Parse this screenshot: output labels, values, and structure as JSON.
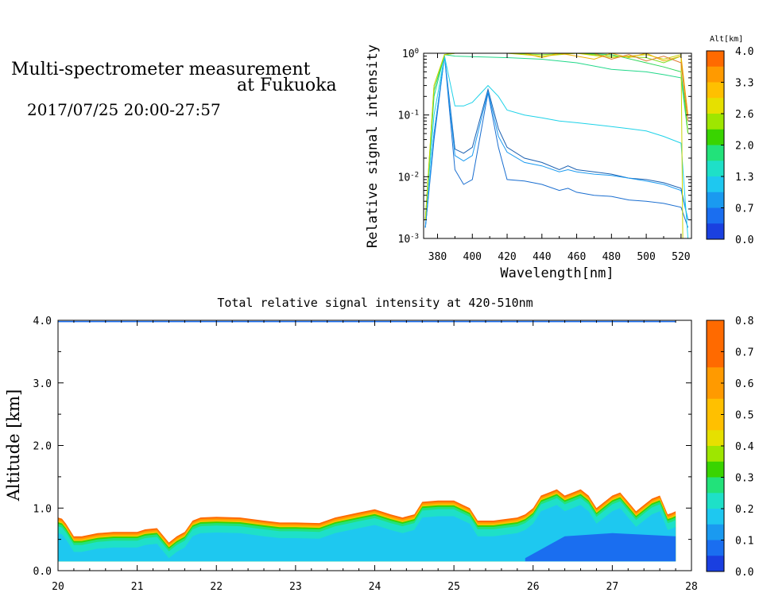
{
  "header": {
    "title_line1": "Multi-spectrometer measurement",
    "title_line2": "at Fukuoka",
    "subtitle": "2017/07/25 20:00-27:57"
  },
  "chart_data": [
    {
      "type": "line",
      "title": "",
      "xlabel": "Wavelength[nm]",
      "ylabel": "Relative signal intensity",
      "xscale": "linear",
      "yscale": "log",
      "xlim": [
        372,
        526
      ],
      "ylim": [
        0.001,
        1
      ],
      "xticks": [
        380,
        400,
        420,
        440,
        460,
        480,
        500,
        520
      ],
      "yticks": [
        {
          "value": 1,
          "label": "10^0"
        },
        {
          "value": 0.1,
          "label": "10^-1"
        },
        {
          "value": 0.01,
          "label": "10^-2"
        },
        {
          "value": 0.001,
          "label": "10^-3"
        }
      ],
      "colorbar": {
        "label": "Alt[km]",
        "ticks": [
          "4.0",
          "3.3",
          "2.6",
          "2.0",
          "1.3",
          "0.7",
          "0.0"
        ],
        "colors": [
          "#ff6a00",
          "#ff9a00",
          "#ffc000",
          "#e6e000",
          "#9ee600",
          "#39d400",
          "#22e27a",
          "#1ee0c8",
          "#1ec8f0",
          "#1a9af0",
          "#1a6ef0",
          "#1a40e0"
        ]
      },
      "series": [
        {
          "color": "#1a5fb0",
          "x": [
            373,
            378,
            384,
            390,
            395,
            400,
            409,
            415,
            420,
            430,
            440,
            450,
            455,
            460,
            470,
            480,
            490,
            500,
            510,
            520,
            524
          ],
          "y": [
            0.0015,
            0.05,
            0.9,
            0.028,
            0.024,
            0.03,
            0.26,
            0.06,
            0.03,
            0.02,
            0.017,
            0.013,
            0.015,
            0.013,
            0.012,
            0.011,
            0.0095,
            0.009,
            0.008,
            0.0065,
            0.002
          ]
        },
        {
          "color": "#1a6ed0",
          "x": [
            373,
            378,
            384,
            390,
            395,
            400,
            409,
            415,
            420,
            430,
            440,
            450,
            455,
            460,
            470,
            480,
            490,
            500,
            510,
            520,
            524
          ],
          "y": [
            0.0015,
            0.04,
            0.9,
            0.013,
            0.0075,
            0.009,
            0.23,
            0.03,
            0.009,
            0.0085,
            0.0075,
            0.006,
            0.0065,
            0.0056,
            0.005,
            0.0048,
            0.0042,
            0.004,
            0.0037,
            0.0032,
            0.0015
          ]
        },
        {
          "color": "#1a9af0",
          "x": [
            373,
            378,
            384,
            390,
            395,
            400,
            409,
            415,
            420,
            430,
            440,
            450,
            455,
            460,
            470,
            480,
            490,
            500,
            510,
            520,
            524
          ],
          "y": [
            0.0015,
            0.05,
            0.9,
            0.022,
            0.018,
            0.022,
            0.24,
            0.045,
            0.025,
            0.017,
            0.015,
            0.012,
            0.013,
            0.012,
            0.011,
            0.0105,
            0.0095,
            0.0085,
            0.0075,
            0.006,
            0.002
          ]
        },
        {
          "color": "#1ed2e8",
          "x": [
            373,
            378,
            384,
            390,
            395,
            400,
            409,
            415,
            420,
            430,
            440,
            450,
            460,
            470,
            480,
            490,
            500,
            510,
            520,
            524
          ],
          "y": [
            0.002,
            0.1,
            0.9,
            0.14,
            0.14,
            0.16,
            0.3,
            0.2,
            0.12,
            0.1,
            0.09,
            0.08,
            0.075,
            0.07,
            0.065,
            0.06,
            0.055,
            0.045,
            0.035,
            0.001
          ]
        },
        {
          "color": "#22d88a",
          "x": [
            373,
            378,
            384,
            390,
            420,
            440,
            460,
            480,
            500,
            510,
            520,
            524
          ],
          "y": [
            0.002,
            0.2,
            0.95,
            0.9,
            0.85,
            0.8,
            0.7,
            0.55,
            0.5,
            0.45,
            0.4,
            0.05
          ]
        },
        {
          "color": "#2fd65a",
          "x": [
            373,
            378,
            384,
            390,
            420,
            440,
            460,
            480,
            500,
            510,
            520,
            524
          ],
          "y": [
            0.002,
            0.25,
            0.95,
            1.0,
            1.0,
            1.0,
            1.0,
            0.95,
            0.7,
            0.6,
            0.5,
            0.05
          ]
        },
        {
          "color": "#7ede20",
          "x": [
            373,
            378,
            384,
            390,
            420,
            440,
            460,
            480,
            500,
            510,
            520,
            524
          ],
          "y": [
            0.002,
            0.3,
            0.95,
            1.0,
            1.0,
            0.95,
            1.0,
            0.9,
            0.85,
            0.7,
            0.9,
            0.05
          ]
        },
        {
          "color": "#c8d400",
          "x": [
            373,
            378,
            384,
            390,
            420,
            440,
            460,
            480,
            500,
            510,
            520,
            521
          ],
          "y": [
            0.002,
            0.3,
            0.95,
            1.0,
            1.0,
            0.9,
            1.0,
            0.85,
            0.95,
            0.8,
            0.95,
            0.001
          ]
        },
        {
          "color": "#f0b000",
          "x": [
            430,
            440,
            450,
            460,
            470,
            480,
            490,
            500,
            510,
            520,
            524
          ],
          "y": [
            1.0,
            0.85,
            1.0,
            0.9,
            0.8,
            1.0,
            0.85,
            1.0,
            0.75,
            0.9,
            0.1
          ]
        },
        {
          "color": "#e07a30",
          "x": [
            470,
            480,
            490,
            500,
            510,
            520,
            524
          ],
          "y": [
            1.0,
            0.8,
            0.95,
            0.75,
            0.9,
            0.7,
            0.08
          ]
        }
      ]
    },
    {
      "type": "heatmap",
      "title": "Total relative signal intensity at 420-510nm",
      "xlabel": "",
      "ylabel": "Altitude [km]",
      "xlim": [
        20,
        28
      ],
      "ylim": [
        0,
        4
      ],
      "xticks": [
        20,
        21,
        22,
        23,
        24,
        25,
        26,
        27,
        28
      ],
      "yticks": [
        0.0,
        1.0,
        2.0,
        3.0,
        4.0
      ],
      "colorbar": {
        "ticks": [
          "0.8",
          "0.7",
          "0.6",
          "0.5",
          "0.4",
          "0.3",
          "0.2",
          "0.1",
          "0.0"
        ],
        "stops": [
          {
            "v": 0.0,
            "c": "#1a3fe0"
          },
          {
            "v": 0.05,
            "c": "#1a6ef0"
          },
          {
            "v": 0.1,
            "c": "#1a9af0"
          },
          {
            "v": 0.15,
            "c": "#1ec8f0"
          },
          {
            "v": 0.2,
            "c": "#1ee0c8"
          },
          {
            "v": 0.25,
            "c": "#22e27a"
          },
          {
            "v": 0.3,
            "c": "#39d400"
          },
          {
            "v": 0.35,
            "c": "#9ee600"
          },
          {
            "v": 0.4,
            "c": "#e6e000"
          },
          {
            "v": 0.45,
            "c": "#ffc000"
          },
          {
            "v": 0.55,
            "c": "#ff9a00"
          },
          {
            "v": 0.65,
            "c": "#ff6a00"
          },
          {
            "v": 0.8,
            "c": "#ff2800"
          }
        ]
      },
      "layer_bottom_km": 0.15,
      "layer_top_km": {
        "x": [
          20.0,
          20.05,
          20.1,
          20.2,
          20.3,
          20.5,
          20.7,
          21.0,
          21.1,
          21.25,
          21.4,
          21.5,
          21.6,
          21.7,
          21.8,
          22.0,
          22.3,
          22.6,
          22.8,
          23.0,
          23.3,
          23.5,
          23.8,
          24.0,
          24.2,
          24.35,
          24.5,
          24.6,
          24.8,
          25.0,
          25.2,
          25.3,
          25.5,
          25.8,
          25.9,
          26.0,
          26.1,
          26.2,
          26.3,
          26.4,
          26.5,
          26.6,
          26.7,
          26.8,
          26.9,
          27.0,
          27.1,
          27.2,
          27.3,
          27.4,
          27.5,
          27.6,
          27.7,
          27.75,
          27.8
        ],
        "y": [
          0.85,
          0.83,
          0.75,
          0.55,
          0.55,
          0.6,
          0.62,
          0.62,
          0.66,
          0.68,
          0.45,
          0.55,
          0.62,
          0.8,
          0.85,
          0.86,
          0.85,
          0.8,
          0.77,
          0.77,
          0.76,
          0.85,
          0.93,
          0.98,
          0.9,
          0.85,
          0.9,
          1.1,
          1.12,
          1.12,
          1.0,
          0.8,
          0.8,
          0.85,
          0.9,
          1.0,
          1.2,
          1.25,
          1.3,
          1.2,
          1.25,
          1.3,
          1.2,
          1.0,
          1.1,
          1.2,
          1.25,
          1.1,
          0.95,
          1.05,
          1.15,
          1.2,
          0.9,
          0.92,
          0.95
        ]
      },
      "layer_intensity_bands": [
        {
          "depth_km": 0.0,
          "value": 0.75
        },
        {
          "depth_km": 0.025,
          "value": 0.6
        },
        {
          "depth_km": 0.05,
          "value": 0.45
        },
        {
          "depth_km": 0.075,
          "value": 0.33
        },
        {
          "depth_km": 0.1,
          "value": 0.26
        },
        {
          "depth_km": 0.14,
          "value": 0.2
        },
        {
          "depth_km": 0.25,
          "value": 0.15
        }
      ],
      "low_intensity_region": {
        "x": [
          25.9,
          26.4,
          27.0,
          27.8
        ],
        "top_km": [
          0.2,
          0.55,
          0.6,
          0.55
        ],
        "value": 0.08
      },
      "top_edge_line_km": 3.98
    }
  ]
}
